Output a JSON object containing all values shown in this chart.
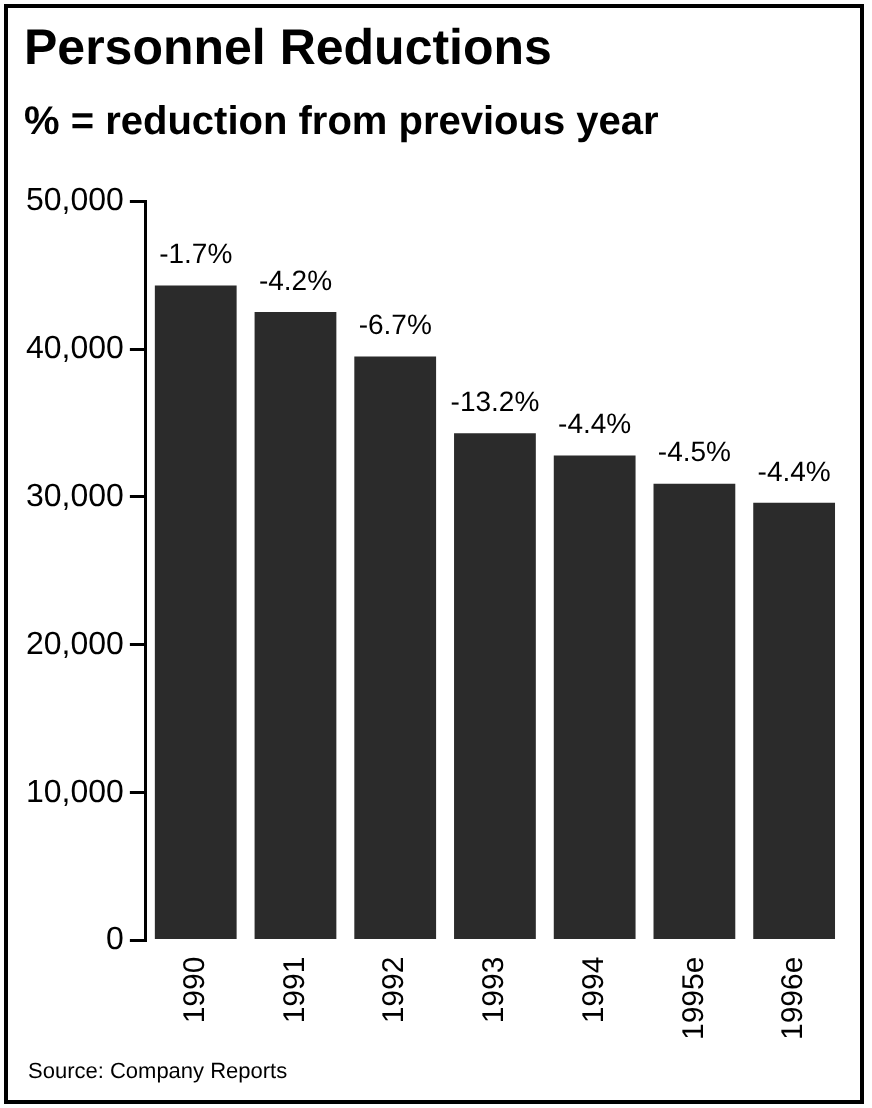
{
  "chart_data": {
    "type": "bar",
    "title": "Personnel Reductions",
    "subtitle": "% = reduction from previous year",
    "categories": [
      "1990",
      "1991",
      "1992",
      "1993",
      "1994",
      "1995e",
      "1996e"
    ],
    "values": [
      44300,
      42500,
      39500,
      34300,
      32800,
      30900,
      29600
    ],
    "color": "#2b2b2b",
    "ylim": [
      0,
      50000
    ],
    "yticks": [
      {
        "value": 0,
        "label": "0"
      },
      {
        "value": 10000,
        "label": "10,000"
      },
      {
        "value": 20000,
        "label": "20,000"
      },
      {
        "value": 30000,
        "label": "30,000"
      },
      {
        "value": 40000,
        "label": "40,000"
      },
      {
        "value": 50000,
        "label": "50,000"
      }
    ],
    "grid": false,
    "legend": false,
    "annotations": [
      {
        "text": "-1.7%",
        "x": "1990",
        "y": 44300
      },
      {
        "text": "-4.2%",
        "x": "1991",
        "y": 42500
      },
      {
        "text": "-6.7%",
        "x": "1992",
        "y": 39500
      },
      {
        "text": "-13.2%",
        "x": "1993",
        "y": 34300
      },
      {
        "text": "-4.4%",
        "x": "1994",
        "y": 32800
      },
      {
        "text": "-4.5%",
        "x": "1995e",
        "y": 30900
      },
      {
        "text": "-4.4%",
        "x": "1996e",
        "y": 29600
      },
      "Source: Company Reports"
    ]
  }
}
